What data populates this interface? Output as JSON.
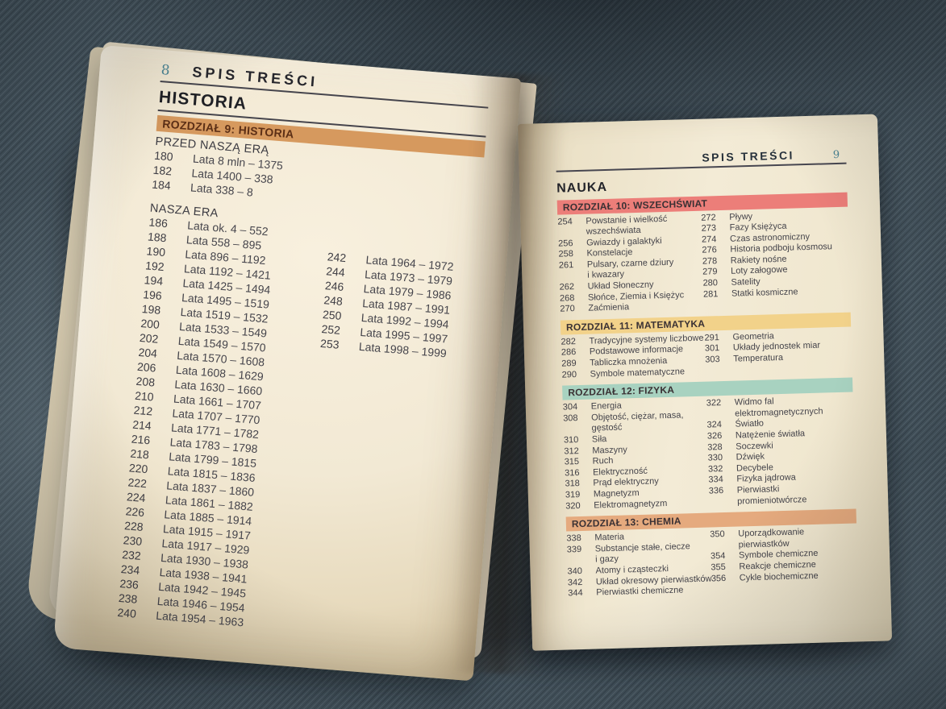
{
  "colors": {
    "denim": "#46555f",
    "paper_light": "#f3ebd6",
    "paper_shade": "#d8c8a6",
    "rule": "#45444c",
    "body_text": "#44434a",
    "page_number_teal": "#4a8494",
    "ch9_banner": "#d6995e",
    "ch10_banner": "#ec7e79",
    "ch11_banner": "#f2d28a",
    "ch12_banner": "#a8d2c0",
    "ch13_banner": "#e5aa7e"
  },
  "left_page": {
    "page_number": "8",
    "toc_title": "SPIS TREŚCI",
    "section_title": "HISTORIA",
    "chapter_banner": {
      "label": "ROZDZIAŁ 9: HISTORIA",
      "color": "#d6995e"
    },
    "subsection_bc": {
      "title": "PRZED NASZĄ ERĄ",
      "items": [
        {
          "page": "180",
          "label": "Lata 8 mln – 1375"
        },
        {
          "page": "182",
          "label": "Lata 1400 – 338"
        },
        {
          "page": "184",
          "label": "Lata 338 – 8"
        }
      ]
    },
    "subsection_ad": {
      "title": "NASZA ERA",
      "items": [
        {
          "page": "186",
          "label": "Lata ok. 4 – 552"
        },
        {
          "page": "188",
          "label": "Lata 558 – 895"
        },
        {
          "page": "190",
          "label": "Lata 896 – 1192"
        },
        {
          "page": "192",
          "label": "Lata 1192 – 1421"
        },
        {
          "page": "194",
          "label": "Lata 1425 – 1494"
        },
        {
          "page": "196",
          "label": "Lata 1495 – 1519"
        },
        {
          "page": "198",
          "label": "Lata 1519 – 1532"
        },
        {
          "page": "200",
          "label": "Lata 1533 – 1549"
        },
        {
          "page": "202",
          "label": "Lata 1549 – 1570"
        },
        {
          "page": "204",
          "label": "Lata 1570 – 1608"
        },
        {
          "page": "206",
          "label": "Lata 1608 – 1629"
        },
        {
          "page": "208",
          "label": "Lata 1630 – 1660"
        },
        {
          "page": "210",
          "label": "Lata 1661 – 1707"
        },
        {
          "page": "212",
          "label": "Lata 1707 – 1770"
        },
        {
          "page": "214",
          "label": "Lata 1771 – 1782"
        },
        {
          "page": "216",
          "label": "Lata 1783 – 1798"
        },
        {
          "page": "218",
          "label": "Lata 1799 – 1815"
        },
        {
          "page": "220",
          "label": "Lata 1815 – 1836"
        },
        {
          "page": "222",
          "label": "Lata 1837 – 1860"
        },
        {
          "page": "224",
          "label": "Lata 1861 – 1882"
        },
        {
          "page": "226",
          "label": "Lata 1885 – 1914"
        },
        {
          "page": "228",
          "label": "Lata 1915 – 1917"
        },
        {
          "page": "230",
          "label": "Lata 1917 – 1929"
        },
        {
          "page": "232",
          "label": "Lata 1930 – 1938"
        },
        {
          "page": "234",
          "label": "Lata 1938 – 1941"
        },
        {
          "page": "236",
          "label": "Lata 1942 – 1945"
        },
        {
          "page": "238",
          "label": "Lata 1946 – 1954"
        },
        {
          "page": "240",
          "label": "Lata 1954 – 1963"
        }
      ]
    },
    "column2_items": [
      {
        "page": "242",
        "label": "Lata 1964 – 1972"
      },
      {
        "page": "244",
        "label": "Lata 1973 – 1979"
      },
      {
        "page": "246",
        "label": "Lata 1979 – 1986"
      },
      {
        "page": "248",
        "label": "Lata 1987 – 1991"
      },
      {
        "page": "250",
        "label": "Lata 1992 – 1994"
      },
      {
        "page": "252",
        "label": "Lata 1995 – 1997"
      },
      {
        "page": "253",
        "label": "Lata 1998 – 1999"
      }
    ]
  },
  "right_page": {
    "toc_title": "SPIS TREŚCI",
    "page_number": "9",
    "section_title": "NAUKA",
    "chapters": [
      {
        "banner": "ROZDZIAŁ 10: WSZECHŚWIAT",
        "color": "#ec7e79",
        "col1": [
          {
            "page": "254",
            "label": "Powstanie i wielkość\nwszechświata"
          },
          {
            "page": "256",
            "label": "Gwiazdy i galaktyki"
          },
          {
            "page": "258",
            "label": "Konstelacje"
          },
          {
            "page": "261",
            "label": "Pulsary, czarne dziury\ni kwazary"
          },
          {
            "page": "262",
            "label": "Układ Słoneczny"
          },
          {
            "page": "268",
            "label": "Słońce, Ziemia i Księżyc"
          },
          {
            "page": "270",
            "label": "Zaćmienia"
          }
        ],
        "col2": [
          {
            "page": "272",
            "label": "Pływy"
          },
          {
            "page": "273",
            "label": "Fazy Księżyca"
          },
          {
            "page": "274",
            "label": "Czas astronomiczny"
          },
          {
            "page": "276",
            "label": "Historia podboju kosmosu"
          },
          {
            "page": "278",
            "label": "Rakiety nośne"
          },
          {
            "page": "279",
            "label": "Loty załogowe"
          },
          {
            "page": "280",
            "label": "Satelity"
          },
          {
            "page": "281",
            "label": "Statki kosmiczne"
          }
        ]
      },
      {
        "banner": "ROZDZIAŁ 11: MATEMATYKA",
        "color": "#f2d28a",
        "col1": [
          {
            "page": "282",
            "label": "Tradycyjne systemy liczbowe"
          },
          {
            "page": "286",
            "label": "Podstawowe informacje"
          },
          {
            "page": "289",
            "label": "Tabliczka mnożenia"
          },
          {
            "page": "290",
            "label": "Symbole matematyczne"
          }
        ],
        "col2": [
          {
            "page": "291",
            "label": "Geometria"
          },
          {
            "page": "301",
            "label": "Układy jednostek miar"
          },
          {
            "page": "303",
            "label": "Temperatura"
          }
        ]
      },
      {
        "banner": "ROZDZIAŁ 12: FIZYKA",
        "color": "#a8d2c0",
        "col1": [
          {
            "page": "304",
            "label": "Energia"
          },
          {
            "page": "308",
            "label": "Objętość, ciężar, masa,\ngęstość"
          },
          {
            "page": "310",
            "label": "Siła"
          },
          {
            "page": "312",
            "label": "Maszyny"
          },
          {
            "page": "315",
            "label": "Ruch"
          },
          {
            "page": "316",
            "label": "Elektryczność"
          },
          {
            "page": "318",
            "label": "Prąd elektryczny"
          },
          {
            "page": "319",
            "label": "Magnetyzm"
          },
          {
            "page": "320",
            "label": "Elektromagnetyzm"
          }
        ],
        "col2": [
          {
            "page": "322",
            "label": "Widmo fal\nelektromagnetycznych"
          },
          {
            "page": "324",
            "label": "Światło"
          },
          {
            "page": "326",
            "label": "Natężenie światła"
          },
          {
            "page": "328",
            "label": "Soczewki"
          },
          {
            "page": "330",
            "label": "Dźwięk"
          },
          {
            "page": "332",
            "label": "Decybele"
          },
          {
            "page": "334",
            "label": "Fizyka jądrowa"
          },
          {
            "page": "336",
            "label": "Pierwiastki\npromieniotwórcze"
          }
        ]
      },
      {
        "banner": "ROZDZIAŁ 13: CHEMIA",
        "color": "#e5aa7e",
        "col1": [
          {
            "page": "338",
            "label": "Materia"
          },
          {
            "page": "339",
            "label": "Substancje stałe, ciecze\ni gazy"
          },
          {
            "page": "340",
            "label": "Atomy i cząsteczki"
          },
          {
            "page": "342",
            "label": "Układ okresowy pierwiastków"
          },
          {
            "page": "344",
            "label": "Pierwiastki chemiczne"
          }
        ],
        "col2": [
          {
            "page": "350",
            "label": "Uporządkowanie\npierwiastków"
          },
          {
            "page": "354",
            "label": "Symbole chemiczne"
          },
          {
            "page": "355",
            "label": "Reakcje chemiczne"
          },
          {
            "page": "356",
            "label": "Cykle biochemiczne"
          }
        ]
      }
    ]
  }
}
